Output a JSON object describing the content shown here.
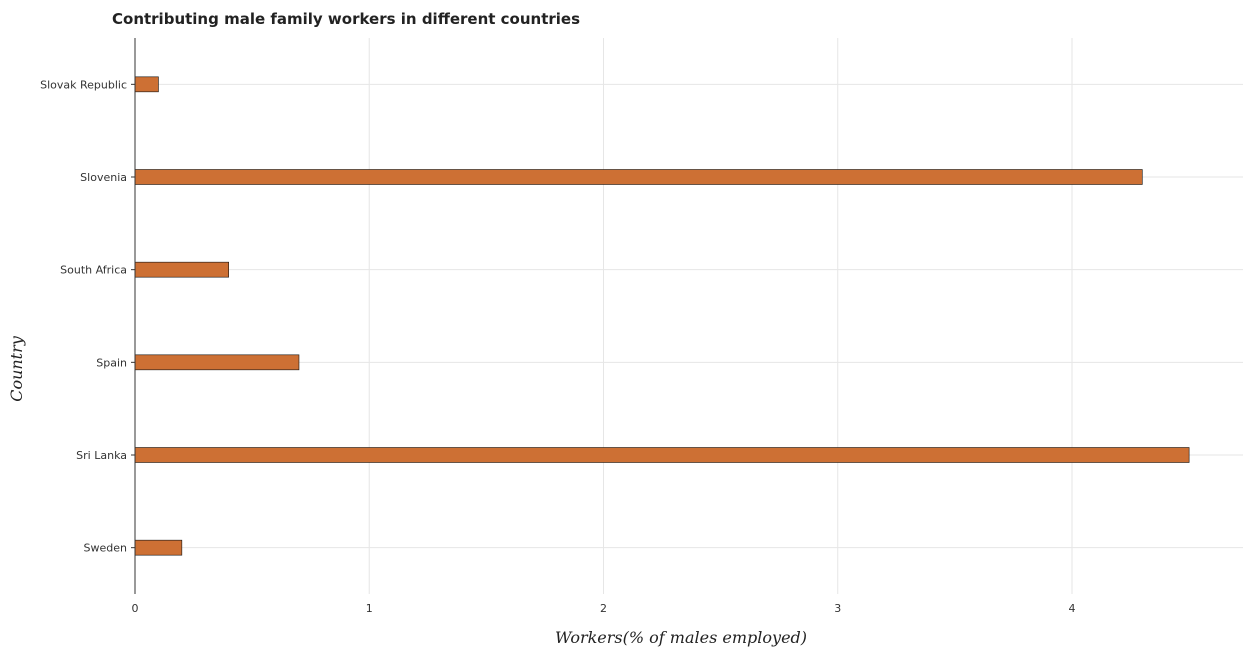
{
  "chart_data": {
    "type": "bar",
    "orientation": "horizontal",
    "title": "Contributing male family workers in different countries",
    "xlabel": "Workers(% of males employed)",
    "ylabel": "Country",
    "categories": [
      "Slovak Republic",
      "Slovenia",
      "South Africa",
      "Spain",
      "Sri Lanka",
      "Sweden"
    ],
    "values": [
      0.1,
      4.3,
      0.4,
      0.7,
      4.5,
      0.2
    ],
    "xlim": [
      0,
      4.73
    ],
    "xticks": [
      0,
      1,
      2,
      3,
      4
    ],
    "xtick_labels": [
      "0",
      "1",
      "2",
      "3",
      "4"
    ],
    "grid": true,
    "bar_color": "#cd7034"
  }
}
